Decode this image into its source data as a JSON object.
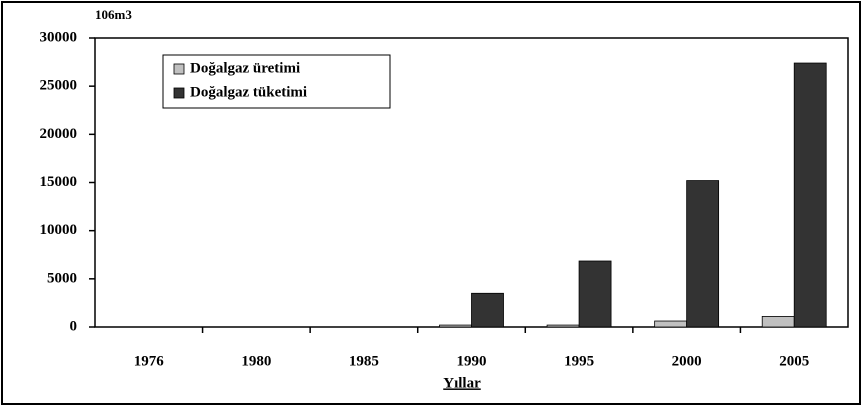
{
  "chart_data": {
    "type": "bar",
    "unit_label": "106m3",
    "x_label": "Yıllar",
    "categories": [
      "1976",
      "1980",
      "1985",
      "1990",
      "1995",
      "2000",
      "2005"
    ],
    "series": [
      {
        "name": "Doğalgaz üretimi",
        "color": "#c0c0c0",
        "values": [
          0,
          0,
          0,
          200,
          200,
          620,
          1100
        ]
      },
      {
        "name": "Doğalgaz tüketimi",
        "color": "#333333",
        "values": [
          0,
          0,
          0,
          3500,
          6850,
          15200,
          27400
        ]
      }
    ],
    "ylim": [
      0,
      30000
    ],
    "yticks": [
      0,
      5000,
      10000,
      15000,
      20000,
      25000,
      30000
    ],
    "legend": "top-left"
  }
}
